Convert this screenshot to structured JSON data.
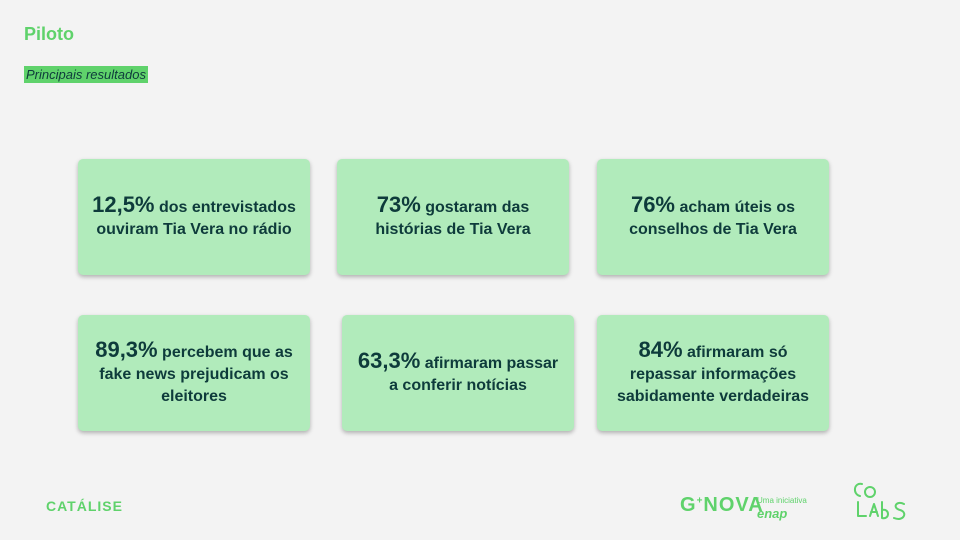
{
  "header": {
    "title": "Piloto",
    "subtitle": "Principais resultados"
  },
  "cards": [
    {
      "highlight": "12,5%",
      "text": " dos entrevistados ouviram Tia Vera no rádio"
    },
    {
      "highlight": "73%",
      "text": " gostaram das histórias de Tia Vera"
    },
    {
      "highlight": "76%",
      "text": " acham úteis os conselhos de Tia Vera"
    },
    {
      "highlight": "89,3%",
      "text": " percebem que as fake news prejudicam os eleitores"
    },
    {
      "highlight": "63,3%",
      "text": " afirmaram passar a conferir notícias"
    },
    {
      "highlight": "84%",
      "text": " afirmaram só repassar informações sabidamente verdadeiras"
    }
  ],
  "footer": {
    "left_logo": "CATÁLISE",
    "gnova_main": "G",
    "gnova_sup": "+",
    "gnova_rest": "NOVA",
    "iniciativa": "Uma iniciativa",
    "enap": "enap",
    "colabs_logo": "CoLabS"
  },
  "colors": {
    "accent_green": "#5fd26b",
    "card_bg": "#b1ebbb",
    "text_dark": "#0e3b3b",
    "page_bg": "#f3f3f3"
  }
}
